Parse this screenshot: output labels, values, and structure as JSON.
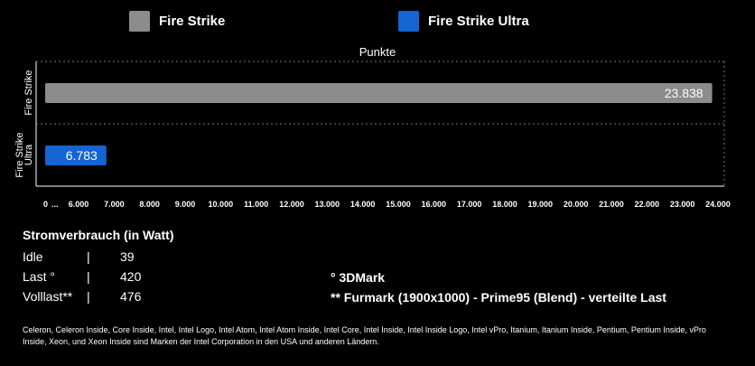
{
  "chart_data": {
    "type": "bar",
    "orientation": "horizontal",
    "title": "Punkte",
    "categories": [
      "Fire Strike",
      "Fire Strike Ultra"
    ],
    "category_labels": [
      [
        "Fire Strike"
      ],
      [
        "Fire Strike",
        "Ultra"
      ]
    ],
    "series": [
      {
        "name": "Fire Strike",
        "color": "#8c8c8c",
        "values": [
          23838,
          null
        ],
        "labels": [
          "23.838",
          ""
        ]
      },
      {
        "name": "Fire Strike Ultra",
        "color": "#1464d2",
        "values": [
          null,
          6783
        ],
        "labels": [
          "",
          "6.783"
        ]
      }
    ],
    "x_ticks": [
      "0",
      "...",
      "6.000",
      "7.000",
      "8.000",
      "9.000",
      "10.000",
      "11.000",
      "12.000",
      "13.000",
      "14.000",
      "15.000",
      "16.000",
      "17.000",
      "18.000",
      "19.000",
      "20.000",
      "21.000",
      "22.000",
      "23.000",
      "24.000"
    ],
    "xlim": [
      0,
      24000
    ],
    "axis_break": "0 ... 6.000",
    "grid": false,
    "legend_position": "top"
  },
  "power": {
    "title": "Stromverbrauch (in Watt)",
    "separator": "|",
    "rows": [
      {
        "label": "Idle",
        "value": "39"
      },
      {
        "label": "Last °",
        "value": "420"
      },
      {
        "label": "Volllast**",
        "value": "476"
      }
    ]
  },
  "notes": {
    "degree": "°  3DMark",
    "double_star": "** Furmark (1900x1000) - Prime95 (Blend) - verteilte Last"
  },
  "footer": "Celeron, Celeron Inside, Core Inside, Intel, Intel Logo, Intel Atom, Intel Atom Inside, Intel Core, Intel Inside, Intel Inside Logo, Intel vPro, Itanium, Itanium Inside, Pentium, Pentium Inside, vPro Inside, Xeon, und Xeon Inside sind Marken der Intel Corporation in den USA und anderen Ländern."
}
